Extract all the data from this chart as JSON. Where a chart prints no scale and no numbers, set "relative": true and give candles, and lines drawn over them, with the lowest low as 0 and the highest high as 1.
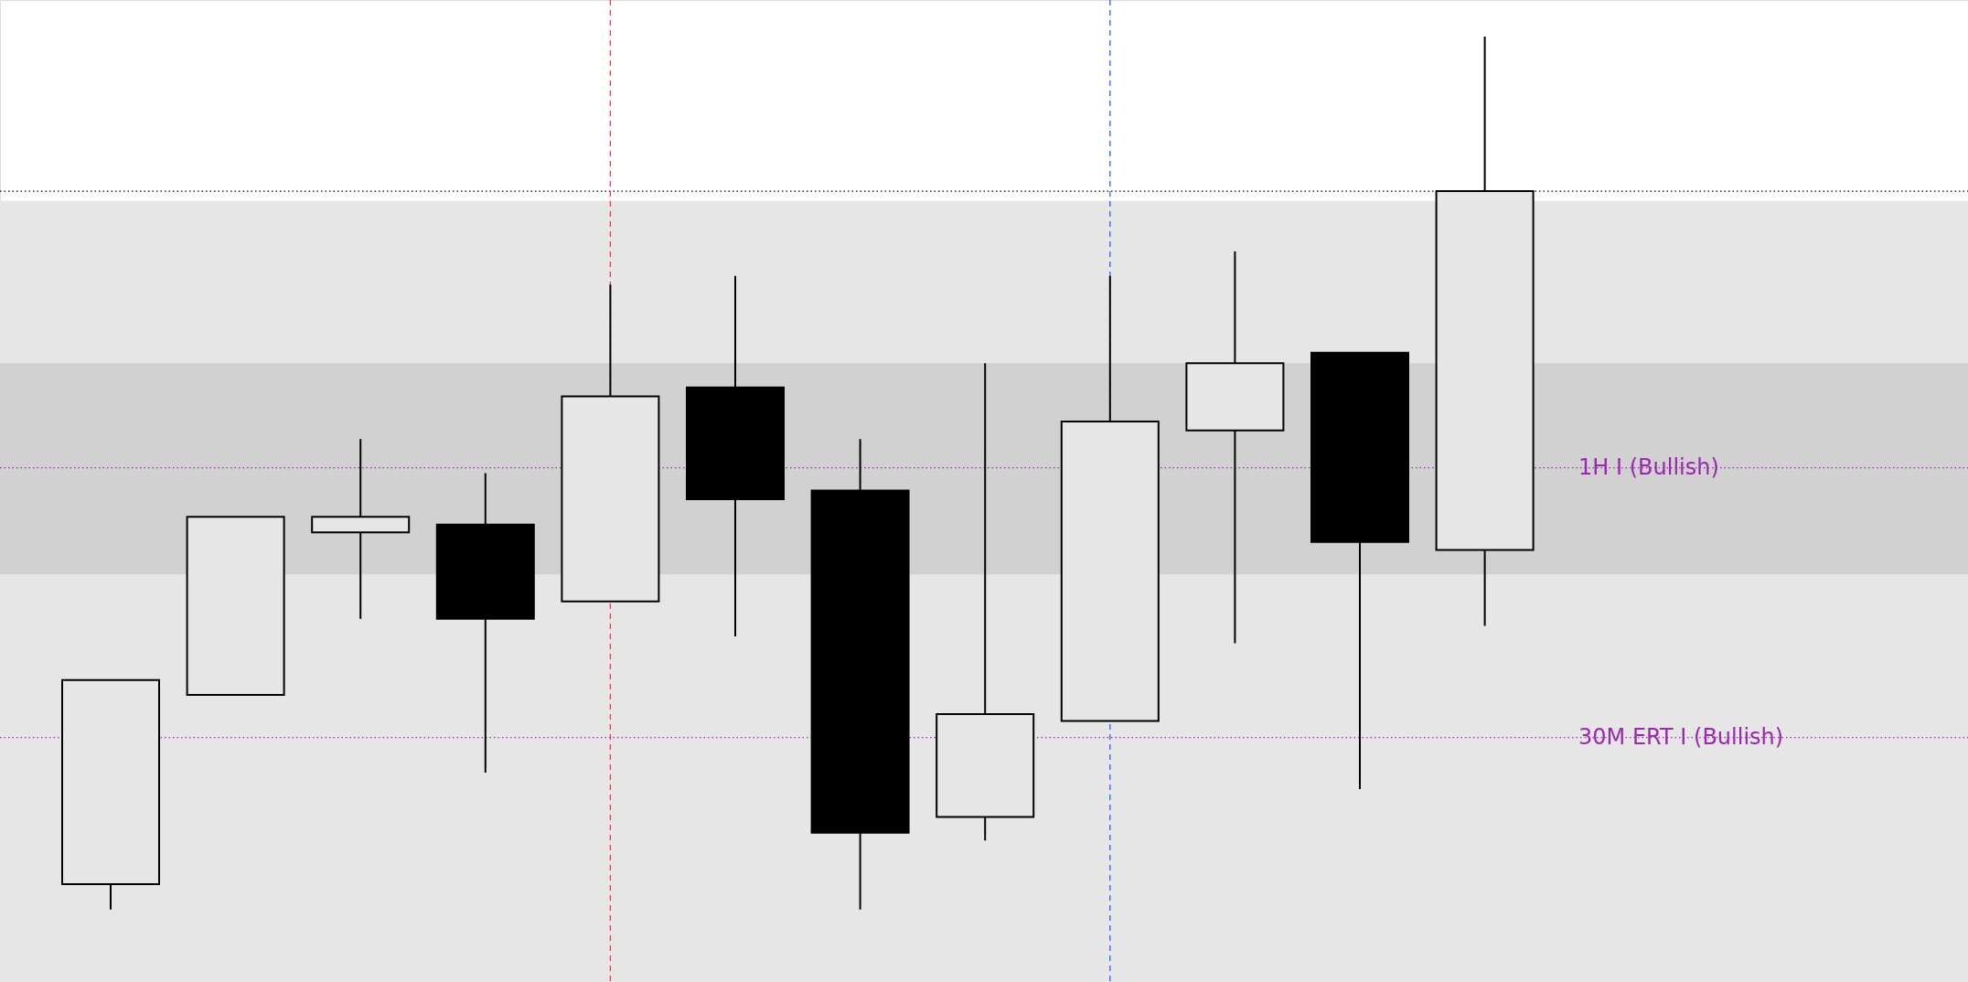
{
  "chart_data": {
    "type": "candlestick",
    "relative": true,
    "grid": false,
    "categories": [
      null,
      null,
      null,
      null,
      null,
      null,
      null,
      null,
      null,
      null,
      null,
      null
    ],
    "ohlc": [
      [
        0.029,
        0.263,
        0,
        0.263
      ],
      [
        0.246,
        0.45,
        0.246,
        0.45
      ],
      [
        0.432,
        0.539,
        0.333,
        0.45
      ],
      [
        0.441,
        0.5,
        0.157,
        0.333
      ],
      [
        0.353,
        0.716,
        0.353,
        0.588
      ],
      [
        0.598,
        0.726,
        0.313,
        0.47
      ],
      [
        0.48,
        0.539,
        0,
        0.088
      ],
      [
        0.106,
        0.626,
        0.079,
        0.224
      ],
      [
        0.216,
        0.726,
        0.216,
        0.559
      ],
      [
        0.549,
        0.754,
        0.305,
        0.626
      ],
      [
        0.638,
        0.638,
        0.138,
        0.421
      ],
      [
        0.412,
        1,
        0.325,
        0.823
      ]
    ],
    "bands": [
      {
        "axis": "y",
        "from": -0.083,
        "to": 0.812,
        "color": "#e6e6e6"
      },
      {
        "axis": "y",
        "from": 0.384,
        "to": 0.626,
        "color": "#d1d1d1"
      }
    ],
    "ref_lines": [
      {
        "axis": "y",
        "value": 0.823,
        "color": "#000000",
        "line_style": "dotted"
      },
      {
        "axis": "y",
        "value": 0.506,
        "label": "1H I (Bullish)",
        "color": "#9c27b0",
        "line_style": "dotted"
      },
      {
        "axis": "y",
        "value": 0.197,
        "label": "30M ERT I (Bullish)",
        "color": "#9c27b0",
        "line_style": "dotted"
      }
    ]
  }
}
